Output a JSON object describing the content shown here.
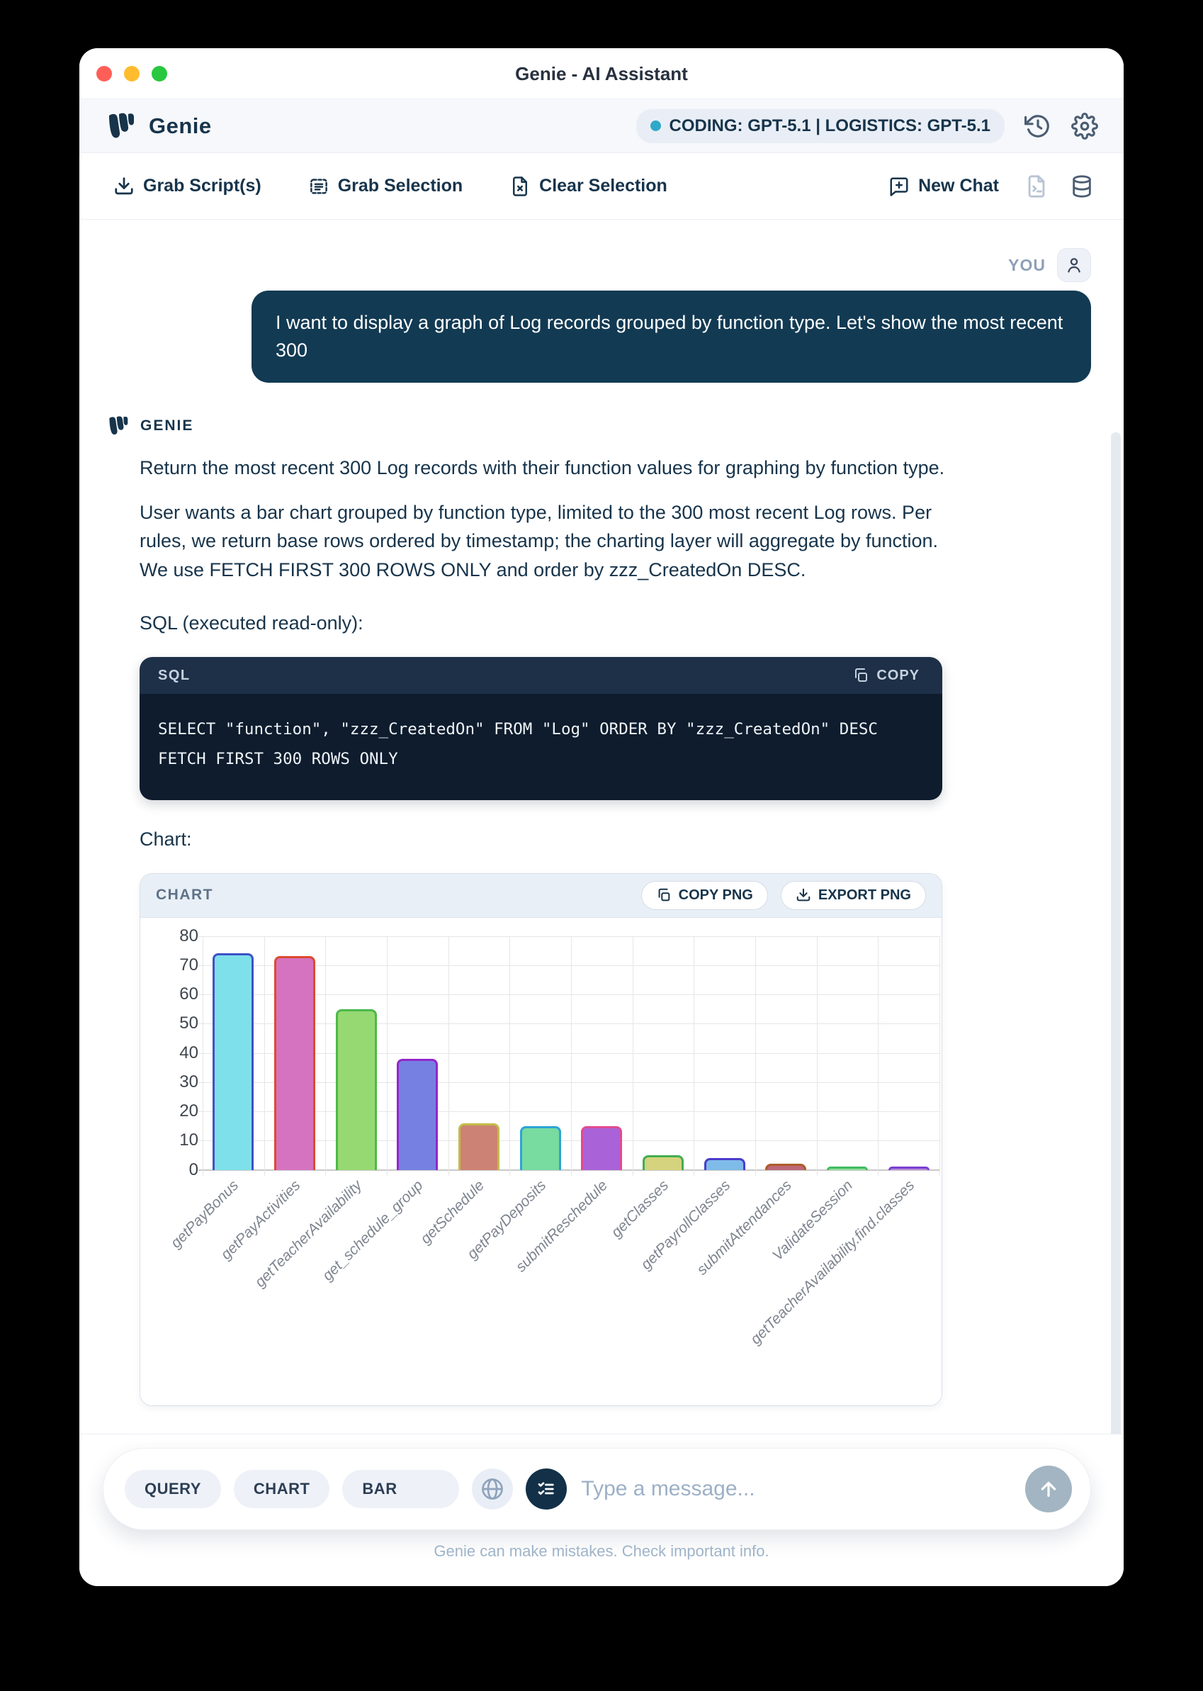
{
  "window": {
    "title": "Genie - AI Assistant"
  },
  "header": {
    "brand": "Genie",
    "model_badge": "CODING: GPT-5.1 | LOGISTICS: GPT-5.1",
    "accent_dot_color": "#2fa8c9"
  },
  "toolbar": {
    "grab_scripts": "Grab Script(s)",
    "grab_selection": "Grab Selection",
    "clear_selection": "Clear Selection",
    "new_chat": "New Chat"
  },
  "chat": {
    "you_label": "YOU",
    "user_message": "I want to display a graph of Log records grouped by function type. Let's show the most recent 300",
    "genie_label": "GENIE",
    "paragraphs": [
      "Return the most recent 300 Log records with their function values for graphing by function type.",
      "User wants a bar chart grouped by function type, limited to the 300 most recent Log rows. Per rules, we return base rows ordered by timestamp; the charting layer will aggregate by function. We use FETCH FIRST 300 ROWS ONLY and order by zzz_CreatedOn DESC."
    ],
    "sql_intro": "SQL (executed read-only):",
    "sql_block": {
      "header_label": "SQL",
      "copy_label": "COPY",
      "code_lines": [
        "SELECT \"function\", \"zzz_CreatedOn\" FROM \"Log\" ORDER BY \"zzz_CreatedOn\" DESC",
        "FETCH FIRST 300 ROWS ONLY"
      ]
    },
    "chart_intro": "Chart:",
    "chart_header": {
      "title": "CHART",
      "copy_png": "COPY PNG",
      "export_png": "EXPORT PNG"
    }
  },
  "chart_data": {
    "type": "bar",
    "title": "",
    "xlabel": "",
    "ylabel": "",
    "ylim": [
      0,
      80
    ],
    "yticks": [
      0,
      10,
      20,
      30,
      40,
      50,
      60,
      70,
      80
    ],
    "grid": true,
    "legend": false,
    "categories": [
      "getPayBonus",
      "getPayActivities",
      "getTeacherAvailability",
      "get_schedule_group",
      "getSchedule",
      "getPayDeposits",
      "submitReschedule",
      "getClasses",
      "getPayrollClasses",
      "submitAttendances",
      "ValidateSession",
      "getTeacherAvailability.find.classes"
    ],
    "values": [
      74,
      73,
      55,
      38,
      16,
      15,
      15,
      5,
      4,
      2,
      1,
      1
    ],
    "bar_colors": [
      {
        "fill": "#7ee0ea",
        "border": "#3f51c7"
      },
      {
        "fill": "#d673c0",
        "border": "#dc4b2e"
      },
      {
        "fill": "#96d972",
        "border": "#4db84a"
      },
      {
        "fill": "#7680e2",
        "border": "#9326c9"
      },
      {
        "fill": "#cc8274",
        "border": "#c2bc4a"
      },
      {
        "fill": "#78dba0",
        "border": "#2fa3d6"
      },
      {
        "fill": "#aa62d8",
        "border": "#e24a90"
      },
      {
        "fill": "#d5d37d",
        "border": "#43ad52"
      },
      {
        "fill": "#7fbbe8",
        "border": "#4a3ccc"
      },
      {
        "fill": "#bd6877",
        "border": "#ad5c2b"
      },
      {
        "fill": "#8edd96",
        "border": "#41bb62"
      },
      {
        "fill": "#b489d8",
        "border": "#7a3fd1"
      }
    ]
  },
  "composer": {
    "chips": [
      "QUERY",
      "CHART",
      "BAR"
    ],
    "placeholder": "Type a message...",
    "footer": "Genie can make mistakes. Check important info."
  }
}
